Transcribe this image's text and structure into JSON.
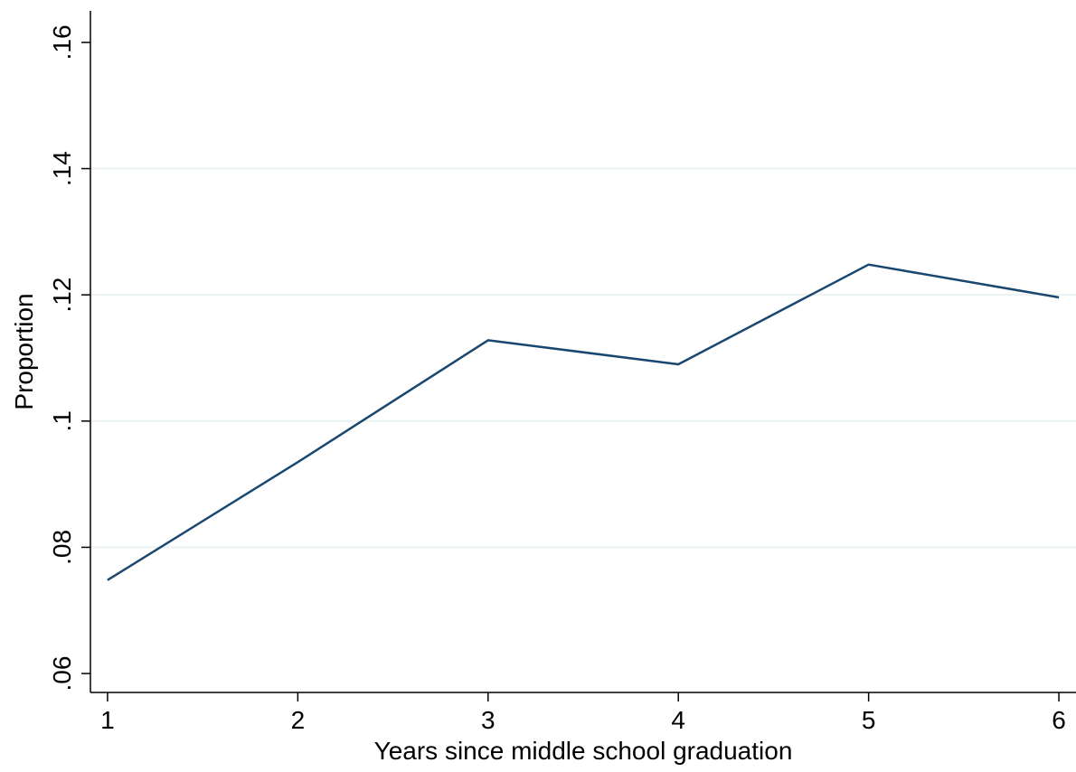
{
  "chart_data": {
    "type": "line",
    "xlabel": "Years since middle school graduation",
    "ylabel": "Proportion",
    "x": [
      1,
      2,
      3,
      4,
      5,
      6
    ],
    "series": [
      {
        "values": [
          0.0748,
          0.0935,
          0.1128,
          0.109,
          0.1248,
          0.1196
        ]
      }
    ],
    "xticks": [
      1,
      2,
      3,
      4,
      5,
      6
    ],
    "xtick_labels": [
      "1",
      "2",
      "3",
      "4",
      "5",
      "6"
    ],
    "yticks": [
      0.06,
      0.08,
      0.1,
      0.12,
      0.14,
      0.16
    ],
    "ytick_labels": [
      ".06",
      ".08",
      ".1",
      ".12",
      ".14",
      ".16"
    ],
    "xlim": [
      0.91,
      6.09
    ],
    "ylim": [
      0.057,
      0.165
    ],
    "grid": true,
    "colors": {
      "line": "#1a476f",
      "grid": "#eaf2f3",
      "axis": "#000000"
    }
  }
}
